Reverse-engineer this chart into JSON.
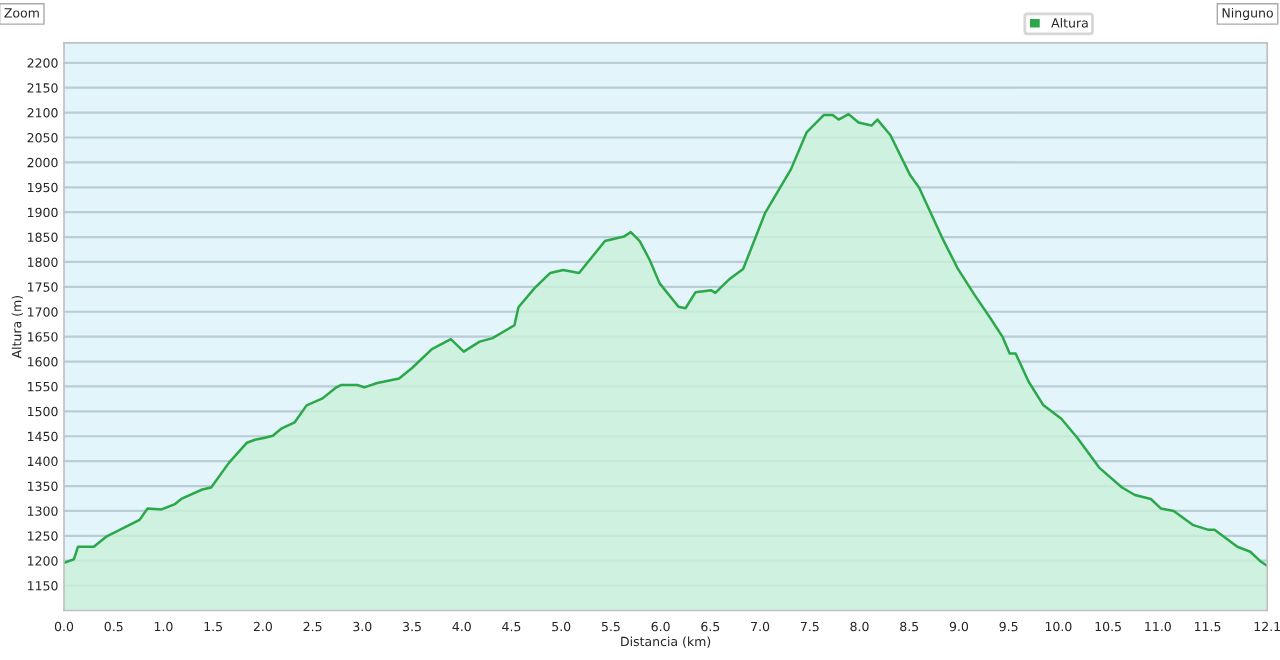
{
  "chart_data": {
    "type": "area",
    "xlabel": "Distancia (km)",
    "ylabel": "Altura (m)",
    "annotations": [
      "Zoom",
      "Ninguno"
    ],
    "series": [
      {
        "name": "Altura",
        "color": "#2aa84a",
        "x": [
          0,
          0.1,
          0.14,
          0.3,
          0.43,
          0.63,
          0.76,
          0.84,
          0.98,
          1.11,
          1.18,
          1.39,
          1.48,
          1.66,
          1.84,
          1.92,
          2.02,
          2.1,
          2.19,
          2.32,
          2.44,
          2.6,
          2.73,
          2.79,
          2.95,
          3.02,
          3.15,
          3.37,
          3.5,
          3.7,
          3.89,
          4.02,
          4.18,
          4.31,
          4.53,
          4.57,
          4.73,
          4.89,
          5.02,
          5.18,
          5.44,
          5.63,
          5.7,
          5.79,
          5.89,
          5.99,
          6.18,
          6.25,
          6.35,
          6.51,
          6.55,
          6.7,
          6.83,
          7.05,
          7.31,
          7.47,
          7.64,
          7.73,
          7.79,
          7.89,
          7.99,
          8.12,
          8.18,
          8.31,
          8.51,
          8.6,
          8.83,
          8.99,
          9.15,
          9.32,
          9.44,
          9.51,
          9.57,
          9.7,
          9.85,
          10.03,
          10.19,
          10.41,
          10.64,
          10.77,
          10.93,
          11.03,
          11.16,
          11.35,
          11.51,
          11.57,
          11.8,
          11.93,
          12.03,
          12.1
        ],
        "values": [
          1196,
          1203,
          1228,
          1228,
          1249,
          1269,
          1282,
          1305,
          1303,
          1313,
          1324,
          1343,
          1347,
          1397,
          1437,
          1443,
          1447,
          1451,
          1466,
          1478,
          1512,
          1526,
          1547,
          1553,
          1553,
          1548,
          1557,
          1566,
          1587,
          1625,
          1645,
          1620,
          1640,
          1647,
          1673,
          1709,
          1747,
          1778,
          1784,
          1778,
          1842,
          1851,
          1860,
          1842,
          1804,
          1757,
          1710,
          1707,
          1739,
          1743,
          1738,
          1767,
          1786,
          1898,
          1986,
          2061,
          2095,
          2095,
          2086,
          2097,
          2080,
          2074,
          2086,
          2055,
          1974,
          1949,
          1849,
          1786,
          1736,
          1686,
          1649,
          1616,
          1616,
          1560,
          1512,
          1485,
          1447,
          1387,
          1347,
          1332,
          1324,
          1305,
          1300,
          1272,
          1262,
          1262,
          1228,
          1218,
          1199,
          1190
        ]
      }
    ],
    "xlim": [
      0,
      12.1
    ],
    "xticks": [
      {
        "value": 0,
        "label": "0.0"
      },
      0.5,
      {
        "value": 1,
        "label": "1.0"
      },
      1.5,
      {
        "value": 2,
        "label": "2.0"
      },
      2.5,
      {
        "value": 3,
        "label": "3.0"
      },
      3.5,
      {
        "value": 4,
        "label": "4.0"
      },
      4.5,
      {
        "value": 5,
        "label": "5.0"
      },
      5.5,
      {
        "value": 6,
        "label": "6.0"
      },
      6.5,
      {
        "value": 7,
        "label": "7.0"
      },
      7.5,
      {
        "value": 8,
        "label": "8.0"
      },
      8.5,
      {
        "value": 9,
        "label": "9.0"
      },
      9.5,
      {
        "value": 10,
        "label": "10.0"
      },
      10.5,
      {
        "value": 11,
        "label": "11.0"
      },
      11.5,
      12.1
    ],
    "ylim": [
      1100,
      2240
    ],
    "yticks": [
      1150,
      1200,
      1250,
      1300,
      1350,
      1400,
      1450,
      1500,
      1550,
      1600,
      1650,
      1700,
      1750,
      1800,
      1850,
      1900,
      1950,
      2000,
      2050,
      2100,
      2150,
      2200
    ],
    "grid": "y",
    "legend": "top right"
  }
}
